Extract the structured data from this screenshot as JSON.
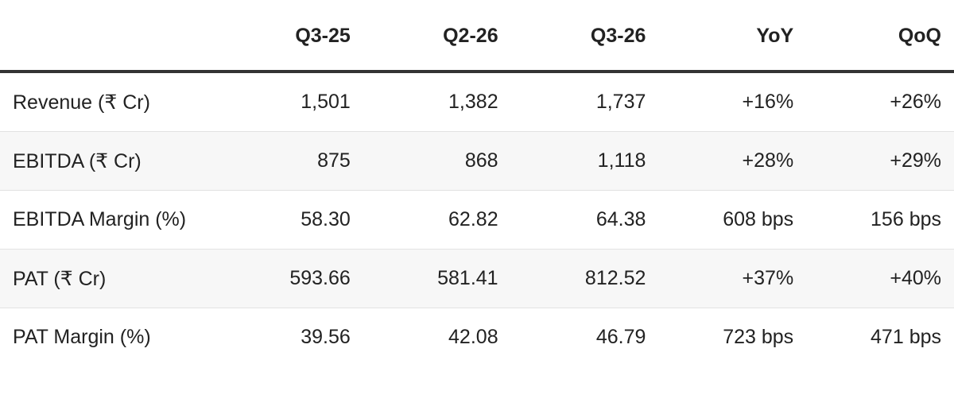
{
  "table": {
    "columns": [
      "Q3-25",
      "Q2-26",
      "Q3-26",
      "YoY",
      "QoQ"
    ],
    "rows": [
      [
        "Revenue (₹ Cr)",
        "1,501",
        "1,382",
        "1,737",
        "+16%",
        "+26%"
      ],
      [
        "EBITDA (₹ Cr)",
        "875",
        "868",
        "1,118",
        "+28%",
        "+29%"
      ],
      [
        "EBITDA Margin (%)",
        "58.30",
        "62.82",
        "64.38",
        "608 bps",
        "156 bps"
      ],
      [
        "PAT (₹ Cr)",
        "593.66",
        "581.41",
        "812.52",
        "+37%",
        "+40%"
      ],
      [
        "PAT Margin (%)",
        "39.56",
        "42.08",
        "46.79",
        "723 bps",
        "471 bps"
      ]
    ]
  }
}
